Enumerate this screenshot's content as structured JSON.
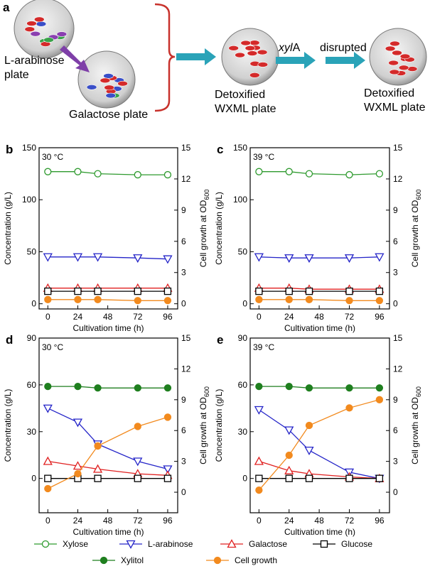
{
  "panel_a": {
    "label": "a",
    "plate_1": [
      "L-arabinose",
      "plate"
    ],
    "plate_2": "Galactose plate",
    "plate_3": [
      "Detoxified",
      "WXML plate"
    ],
    "gene_italic": "xyl",
    "gene_suffix": "A",
    "step": "disrupted",
    "plate_4": [
      "Detoxified",
      "WXML plate"
    ]
  },
  "chart_data": [
    {
      "type": "line",
      "panel_label": "b",
      "annotation": "30 °C",
      "x": [
        0,
        24,
        40,
        72,
        96
      ],
      "xlim": [
        -7,
        104
      ],
      "xticks": [
        0,
        24,
        48,
        72,
        96
      ],
      "ylim": [
        -5,
        150
      ],
      "yticks": [
        0,
        50,
        100,
        150
      ],
      "y2lim": [
        -0.5,
        15
      ],
      "y2ticks": [
        0,
        3,
        6,
        9,
        12,
        15
      ],
      "xlabel": "Cultivation time (h)",
      "ylabel": "Concentration (g/L)",
      "y2label": "Cell growth at OD",
      "y2label_subscript": "600",
      "series": [
        {
          "name": "Xylose",
          "color": "#2e9a2e",
          "marker": "circle-open",
          "values": [
            127,
            127,
            125,
            124,
            124
          ]
        },
        {
          "name": "L-arabinose",
          "color": "#2424c8",
          "marker": "triangle-down-open",
          "values": [
            45,
            45,
            45,
            44,
            43
          ]
        },
        {
          "name": "Galactose",
          "color": "#e02020",
          "marker": "triangle-open",
          "values": [
            15,
            15,
            15,
            15,
            15
          ]
        },
        {
          "name": "Glucose",
          "color": "#000000",
          "marker": "square-open",
          "values": [
            12,
            12,
            12,
            12,
            12
          ]
        },
        {
          "name": "Cell growth",
          "color": "#f28a1e",
          "marker": "circle-filled",
          "axis": "y2",
          "values": [
            0.4,
            0.4,
            0.4,
            0.3,
            0.3
          ]
        }
      ]
    },
    {
      "type": "line",
      "panel_label": "c",
      "annotation": "39 °C",
      "x": [
        0,
        24,
        40,
        72,
        96
      ],
      "xlim": [
        -7,
        104
      ],
      "xticks": [
        0,
        24,
        48,
        72,
        96
      ],
      "ylim": [
        -5,
        150
      ],
      "yticks": [
        0,
        50,
        100,
        150
      ],
      "y2lim": [
        -0.5,
        15
      ],
      "y2ticks": [
        0,
        3,
        6,
        9,
        12,
        15
      ],
      "xlabel": "Cultivation time (h)",
      "ylabel": "Concentration (g/L)",
      "y2label": "Cell growth at OD",
      "y2label_subscript": "600",
      "series": [
        {
          "name": "Xylose",
          "color": "#2e9a2e",
          "marker": "circle-open",
          "values": [
            127,
            127,
            125,
            124,
            125
          ]
        },
        {
          "name": "L-arabinose",
          "color": "#2424c8",
          "marker": "triangle-down-open",
          "values": [
            45,
            44,
            44,
            44,
            45
          ]
        },
        {
          "name": "Galactose",
          "color": "#e02020",
          "marker": "triangle-open",
          "values": [
            15,
            15,
            14,
            14,
            14
          ]
        },
        {
          "name": "Glucose",
          "color": "#000000",
          "marker": "square-open",
          "values": [
            12,
            12,
            12,
            12,
            12
          ]
        },
        {
          "name": "Cell growth",
          "color": "#f28a1e",
          "marker": "circle-filled",
          "axis": "y2",
          "values": [
            0.4,
            0.4,
            0.4,
            0.3,
            0.3
          ]
        }
      ]
    },
    {
      "type": "line",
      "panel_label": "d",
      "annotation": "30 °C",
      "x": [
        0,
        24,
        40,
        72,
        96
      ],
      "xlim": [
        -7,
        104
      ],
      "xticks": [
        0,
        24,
        48,
        72,
        96
      ],
      "ylim": [
        -22,
        90
      ],
      "yticks": [
        0,
        30,
        60,
        90
      ],
      "y2lim": [
        -2,
        15
      ],
      "y2ticks": [
        0,
        3,
        6,
        9,
        12,
        15
      ],
      "xlabel": "Cultivation time (h)",
      "ylabel": "Concentration (g/L)",
      "y2label": "Cell growth at OD",
      "y2label_subscript": "600",
      "series": [
        {
          "name": "Xylitol",
          "color": "#1f7f1f",
          "marker": "circle-filled",
          "values": [
            59,
            59,
            58,
            58,
            58
          ]
        },
        {
          "name": "L-arabinose",
          "color": "#2424c8",
          "marker": "triangle-down-open",
          "values": [
            45,
            36,
            22,
            11,
            6
          ]
        },
        {
          "name": "Galactose",
          "color": "#e02020",
          "marker": "triangle-open",
          "values": [
            11,
            8,
            6,
            3,
            2
          ]
        },
        {
          "name": "Glucose",
          "color": "#000000",
          "marker": "square-open",
          "values": [
            0,
            0,
            0,
            0,
            0
          ]
        },
        {
          "name": "Cell growth",
          "color": "#f28a1e",
          "marker": "circle-filled",
          "axis": "y2",
          "values": [
            0.35,
            1.8,
            4.5,
            6.4,
            7.3
          ]
        }
      ]
    },
    {
      "type": "line",
      "panel_label": "e",
      "annotation": "39 °C",
      "x": [
        0,
        24,
        40,
        72,
        96
      ],
      "xlim": [
        -7,
        104
      ],
      "xticks": [
        0,
        24,
        48,
        72,
        96
      ],
      "ylim": [
        -22,
        90
      ],
      "yticks": [
        0,
        30,
        60,
        90
      ],
      "y2lim": [
        -2,
        15
      ],
      "y2ticks": [
        0,
        3,
        6,
        9,
        12,
        15
      ],
      "xlabel": "Cultivation time (h)",
      "ylabel": "Concentration (g/L)",
      "y2label": "Cell growth at OD",
      "y2label_subscript": "600",
      "series": [
        {
          "name": "Xylitol",
          "color": "#1f7f1f",
          "marker": "circle-filled",
          "values": [
            59,
            59,
            58,
            58,
            58
          ]
        },
        {
          "name": "L-arabinose",
          "color": "#2424c8",
          "marker": "triangle-down-open",
          "values": [
            44,
            31,
            18,
            4,
            0
          ]
        },
        {
          "name": "Galactose",
          "color": "#e02020",
          "marker": "triangle-open",
          "values": [
            11,
            5,
            3,
            1,
            0
          ]
        },
        {
          "name": "Glucose",
          "color": "#000000",
          "marker": "square-open",
          "values": [
            0,
            0,
            0,
            0,
            0
          ]
        },
        {
          "name": "Cell growth",
          "color": "#f28a1e",
          "marker": "circle-filled",
          "axis": "y2",
          "values": [
            0.2,
            3.6,
            6.5,
            8.2,
            9.0
          ]
        }
      ]
    }
  ]
}
